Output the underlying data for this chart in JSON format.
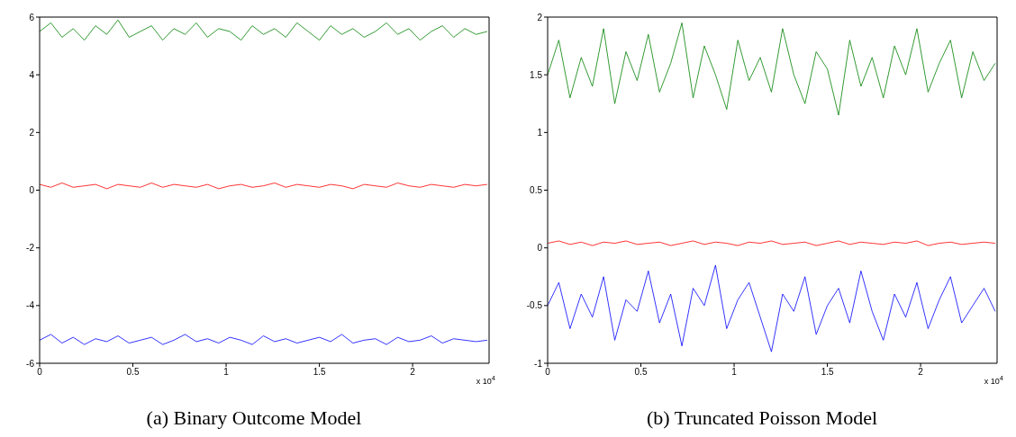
{
  "chart_data": [
    {
      "type": "line",
      "title": "(a) Binary Outcome Model",
      "annotations": [
        "x 10$^{4}$"
      ],
      "legend": false,
      "grid": false,
      "marker": "none",
      "line_style": "solid",
      "x": [
        0,
        0.06,
        0.12,
        0.18,
        0.24,
        0.3,
        0.36,
        0.42,
        0.48,
        0.54,
        0.6,
        0.66,
        0.72,
        0.78,
        0.84,
        0.9,
        0.96,
        1.02,
        1.08,
        1.14,
        1.2,
        1.26,
        1.32,
        1.38,
        1.44,
        1.5,
        1.56,
        1.62,
        1.68,
        1.74,
        1.8,
        1.86,
        1.92,
        1.98,
        2.04,
        2.1,
        2.16,
        2.22,
        2.28,
        2.34,
        2.4
      ],
      "xlim": [
        0,
        2.41
      ],
      "xticks": [
        0,
        0.5,
        1,
        1.5,
        2
      ],
      "ylim": [
        -6,
        6
      ],
      "yticks": [
        -6,
        -4,
        -2,
        0,
        2,
        4,
        6
      ],
      "series": [
        {
          "color": "#008000",
          "values": [
            5.5,
            5.8,
            5.3,
            5.6,
            5.2,
            5.7,
            5.4,
            5.9,
            5.3,
            5.5,
            5.7,
            5.2,
            5.6,
            5.4,
            5.8,
            5.3,
            5.6,
            5.5,
            5.2,
            5.7,
            5.4,
            5.6,
            5.3,
            5.8,
            5.5,
            5.2,
            5.7,
            5.4,
            5.6,
            5.3,
            5.5,
            5.8,
            5.4,
            5.6,
            5.2,
            5.5,
            5.7,
            5.3,
            5.6,
            5.4,
            5.5
          ]
        },
        {
          "color": "#ff0000",
          "values": [
            0.2,
            0.1,
            0.25,
            0.1,
            0.15,
            0.2,
            0.05,
            0.2,
            0.15,
            0.1,
            0.25,
            0.1,
            0.2,
            0.15,
            0.1,
            0.2,
            0.05,
            0.15,
            0.2,
            0.1,
            0.15,
            0.25,
            0.1,
            0.2,
            0.15,
            0.1,
            0.2,
            0.15,
            0.05,
            0.2,
            0.15,
            0.1,
            0.25,
            0.15,
            0.1,
            0.2,
            0.15,
            0.1,
            0.2,
            0.15,
            0.2
          ]
        },
        {
          "color": "#0000ff",
          "values": [
            -5.2,
            -5.0,
            -5.3,
            -5.1,
            -5.35,
            -5.15,
            -5.25,
            -5.05,
            -5.3,
            -5.2,
            -5.1,
            -5.35,
            -5.2,
            -5.0,
            -5.25,
            -5.15,
            -5.3,
            -5.1,
            -5.2,
            -5.35,
            -5.05,
            -5.25,
            -5.15,
            -5.3,
            -5.2,
            -5.1,
            -5.25,
            -5.0,
            -5.3,
            -5.2,
            -5.15,
            -5.35,
            -5.1,
            -5.25,
            -5.2,
            -5.05,
            -5.3,
            -5.15,
            -5.2,
            -5.25,
            -5.2
          ]
        }
      ]
    },
    {
      "type": "line",
      "title": "(b) Truncated Poisson Model",
      "annotations": [
        "x 10$^{4}$"
      ],
      "legend": false,
      "grid": false,
      "marker": "none",
      "line_style": "solid",
      "x": [
        0,
        0.06,
        0.12,
        0.18,
        0.24,
        0.3,
        0.36,
        0.42,
        0.48,
        0.54,
        0.6,
        0.66,
        0.72,
        0.78,
        0.84,
        0.9,
        0.96,
        1.02,
        1.08,
        1.14,
        1.2,
        1.26,
        1.32,
        1.38,
        1.44,
        1.5,
        1.56,
        1.62,
        1.68,
        1.74,
        1.8,
        1.86,
        1.92,
        1.98,
        2.04,
        2.1,
        2.16,
        2.22,
        2.28,
        2.34,
        2.4
      ],
      "xlim": [
        0,
        2.41
      ],
      "xticks": [
        0,
        0.5,
        1,
        1.5,
        2
      ],
      "ylim": [
        -1,
        2
      ],
      "yticks": [
        -1,
        -0.5,
        0,
        0.5,
        1,
        1.5,
        2
      ],
      "series": [
        {
          "color": "#008000",
          "values": [
            1.5,
            1.8,
            1.3,
            1.65,
            1.4,
            1.9,
            1.25,
            1.7,
            1.45,
            1.85,
            1.35,
            1.6,
            1.95,
            1.3,
            1.75,
            1.5,
            1.2,
            1.8,
            1.45,
            1.65,
            1.35,
            1.9,
            1.5,
            1.25,
            1.7,
            1.55,
            1.15,
            1.8,
            1.4,
            1.65,
            1.3,
            1.75,
            1.5,
            1.9,
            1.35,
            1.6,
            1.8,
            1.3,
            1.7,
            1.45,
            1.6
          ]
        },
        {
          "color": "#ff0000",
          "values": [
            0.04,
            0.06,
            0.03,
            0.05,
            0.02,
            0.05,
            0.04,
            0.06,
            0.03,
            0.04,
            0.05,
            0.02,
            0.04,
            0.06,
            0.03,
            0.05,
            0.04,
            0.02,
            0.05,
            0.04,
            0.06,
            0.03,
            0.04,
            0.05,
            0.02,
            0.04,
            0.06,
            0.03,
            0.05,
            0.04,
            0.03,
            0.05,
            0.04,
            0.06,
            0.02,
            0.04,
            0.05,
            0.03,
            0.04,
            0.05,
            0.04
          ]
        },
        {
          "color": "#0000ff",
          "values": [
            -0.5,
            -0.3,
            -0.7,
            -0.4,
            -0.6,
            -0.25,
            -0.8,
            -0.45,
            -0.55,
            -0.2,
            -0.65,
            -0.4,
            -0.85,
            -0.35,
            -0.5,
            -0.15,
            -0.7,
            -0.45,
            -0.3,
            -0.6,
            -0.9,
            -0.4,
            -0.55,
            -0.25,
            -0.75,
            -0.5,
            -0.35,
            -0.65,
            -0.2,
            -0.55,
            -0.8,
            -0.4,
            -0.6,
            -0.3,
            -0.7,
            -0.45,
            -0.25,
            -0.65,
            -0.5,
            -0.35,
            -0.55
          ]
        }
      ]
    }
  ]
}
